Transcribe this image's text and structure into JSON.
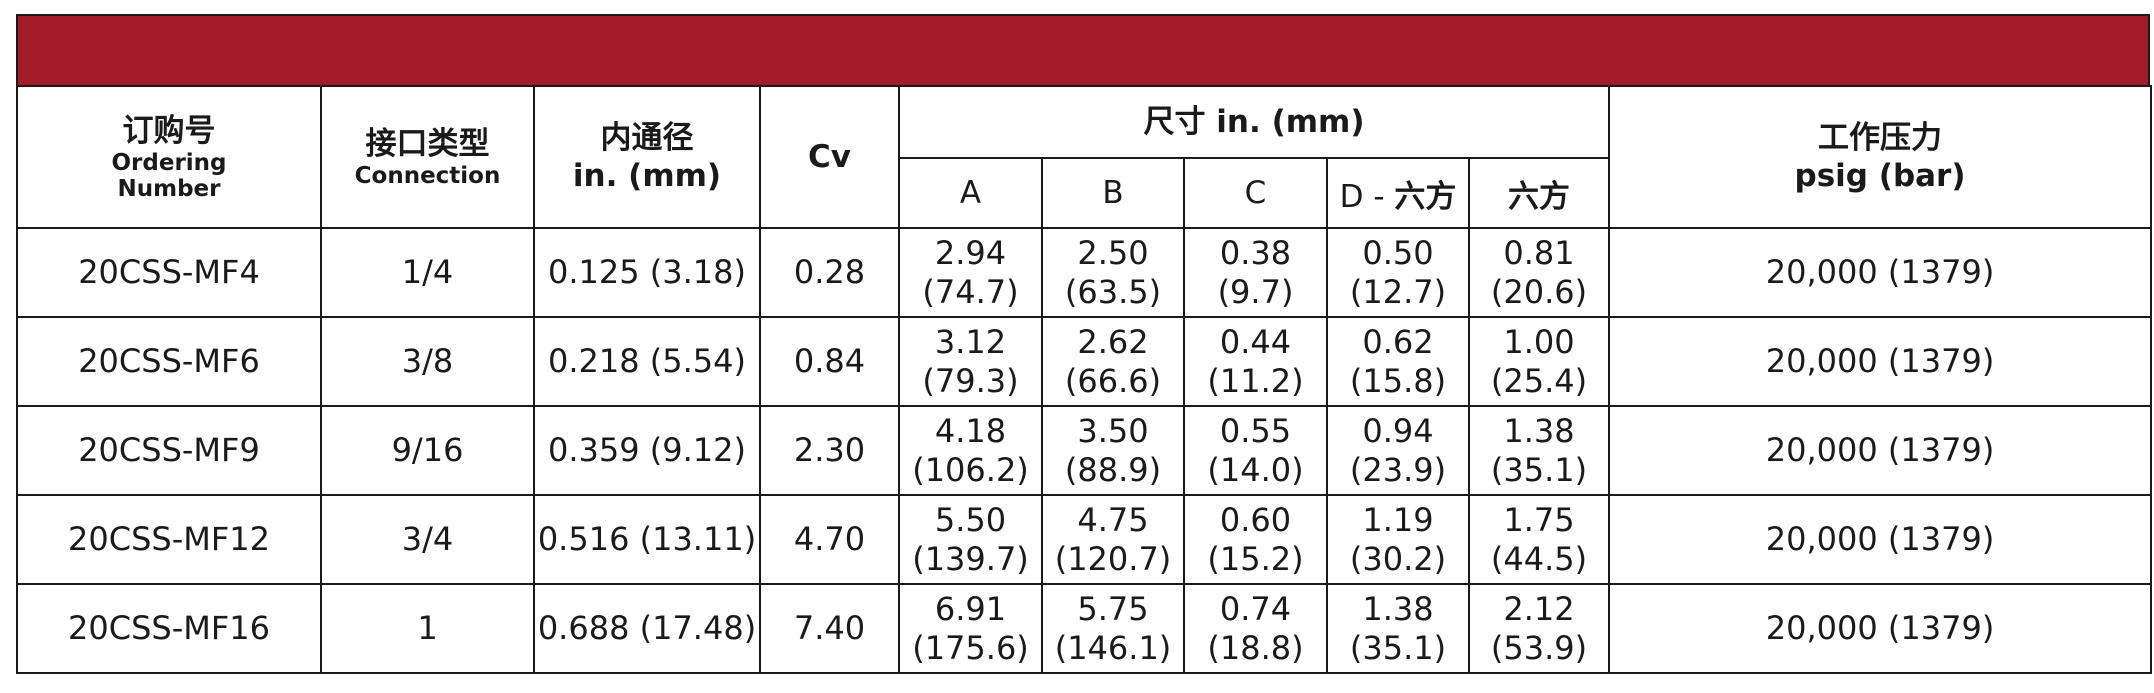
{
  "header": {
    "order_cn": "订购号",
    "order_en1": "Ordering",
    "order_en2": "Number",
    "conn_cn": "接口类型",
    "conn_en": "Connection",
    "bore_cn": "内通径",
    "bore_unit": "in. (mm)",
    "cv": "Cv",
    "dims": "尺寸 in. (mm)",
    "dim_a": "A",
    "dim_b": "B",
    "dim_c": "C",
    "dim_d_prefix": "D - ",
    "dim_d_cn": "六方",
    "dim_hex": "六方",
    "pressure_cn": "工作压力",
    "pressure_unit": "psig (bar)"
  },
  "rows": [
    {
      "order": "20CSS-MF4",
      "conn": "1/4",
      "bore": "0.125 (3.18)",
      "cv": "0.28",
      "a1": "2.94",
      "a2": "(74.7)",
      "b1": "2.50",
      "b2": "(63.5)",
      "c1": "0.38",
      "c2": "(9.7)",
      "d1": "0.50",
      "d2": "(12.7)",
      "h1": "0.81",
      "h2": "(20.6)",
      "pressure": "20,000 (1379)"
    },
    {
      "order": "20CSS-MF6",
      "conn": "3/8",
      "bore": "0.218 (5.54)",
      "cv": "0.84",
      "a1": "3.12",
      "a2": "(79.3)",
      "b1": "2.62",
      "b2": "(66.6)",
      "c1": "0.44",
      "c2": "(11.2)",
      "d1": "0.62",
      "d2": "(15.8)",
      "h1": "1.00",
      "h2": "(25.4)",
      "pressure": "20,000 (1379)"
    },
    {
      "order": "20CSS-MF9",
      "conn": "9/16",
      "bore": "0.359 (9.12)",
      "cv": "2.30",
      "a1": "4.18",
      "a2": "(106.2)",
      "b1": "3.50",
      "b2": "(88.9)",
      "c1": "0.55",
      "c2": "(14.0)",
      "d1": "0.94",
      "d2": "(23.9)",
      "h1": "1.38",
      "h2": "(35.1)",
      "pressure": "20,000 (1379)"
    },
    {
      "order": "20CSS-MF12",
      "conn": "3/4",
      "bore": "0.516 (13.11)",
      "cv": "4.70",
      "a1": "5.50",
      "a2": "(139.7)",
      "b1": "4.75",
      "b2": "(120.7)",
      "c1": "0.60",
      "c2": "(15.2)",
      "d1": "1.19",
      "d2": "(30.2)",
      "h1": "1.75",
      "h2": "(44.5)",
      "pressure": "20,000 (1379)"
    },
    {
      "order": "20CSS-MF16",
      "conn": "1",
      "bore": "0.688 (17.48)",
      "cv": "7.40",
      "a1": "6.91",
      "a2": "(175.6)",
      "b1": "5.75",
      "b2": "(146.1)",
      "c1": "0.74",
      "c2": "(18.8)",
      "d1": "1.38",
      "d2": "(35.1)",
      "h1": "2.12",
      "h2": "(53.9)",
      "pressure": "20,000 (1379)"
    }
  ],
  "colors": {
    "banner": "#a51c28",
    "border": "#1a1a1a"
  }
}
